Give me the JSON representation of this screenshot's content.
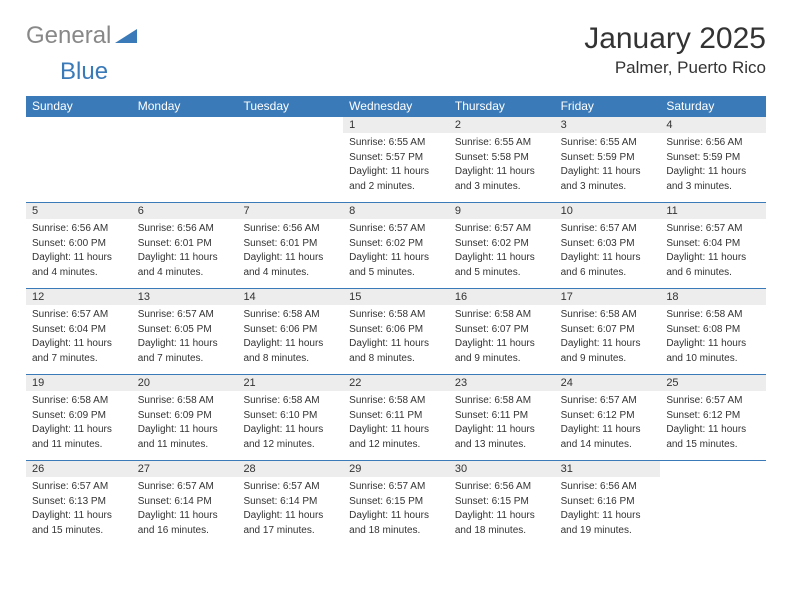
{
  "colors": {
    "header_bg": "#3a7ab8",
    "header_text": "#ffffff",
    "daynum_bg": "#ededed",
    "border": "#3a7ab8",
    "logo_gray": "#888888",
    "logo_blue": "#3a7ab8",
    "text": "#333333",
    "page_bg": "#ffffff"
  },
  "typography": {
    "title_fontsize": 30,
    "location_fontsize": 17,
    "dayheader_fontsize": 12,
    "daynum_fontsize": 11,
    "cell_fontsize": 10
  },
  "logo": {
    "text1": "General",
    "text2": "Blue"
  },
  "title": "January 2025",
  "location": "Palmer, Puerto Rico",
  "day_headers": [
    "Sunday",
    "Monday",
    "Tuesday",
    "Wednesday",
    "Thursday",
    "Friday",
    "Saturday"
  ],
  "weeks": [
    [
      {
        "blank": true
      },
      {
        "blank": true
      },
      {
        "blank": true
      },
      {
        "n": "1",
        "sunrise": "Sunrise: 6:55 AM",
        "sunset": "Sunset: 5:57 PM",
        "dl1": "Daylight: 11 hours",
        "dl2": "and 2 minutes."
      },
      {
        "n": "2",
        "sunrise": "Sunrise: 6:55 AM",
        "sunset": "Sunset: 5:58 PM",
        "dl1": "Daylight: 11 hours",
        "dl2": "and 3 minutes."
      },
      {
        "n": "3",
        "sunrise": "Sunrise: 6:55 AM",
        "sunset": "Sunset: 5:59 PM",
        "dl1": "Daylight: 11 hours",
        "dl2": "and 3 minutes."
      },
      {
        "n": "4",
        "sunrise": "Sunrise: 6:56 AM",
        "sunset": "Sunset: 5:59 PM",
        "dl1": "Daylight: 11 hours",
        "dl2": "and 3 minutes."
      }
    ],
    [
      {
        "n": "5",
        "sunrise": "Sunrise: 6:56 AM",
        "sunset": "Sunset: 6:00 PM",
        "dl1": "Daylight: 11 hours",
        "dl2": "and 4 minutes."
      },
      {
        "n": "6",
        "sunrise": "Sunrise: 6:56 AM",
        "sunset": "Sunset: 6:01 PM",
        "dl1": "Daylight: 11 hours",
        "dl2": "and 4 minutes."
      },
      {
        "n": "7",
        "sunrise": "Sunrise: 6:56 AM",
        "sunset": "Sunset: 6:01 PM",
        "dl1": "Daylight: 11 hours",
        "dl2": "and 4 minutes."
      },
      {
        "n": "8",
        "sunrise": "Sunrise: 6:57 AM",
        "sunset": "Sunset: 6:02 PM",
        "dl1": "Daylight: 11 hours",
        "dl2": "and 5 minutes."
      },
      {
        "n": "9",
        "sunrise": "Sunrise: 6:57 AM",
        "sunset": "Sunset: 6:02 PM",
        "dl1": "Daylight: 11 hours",
        "dl2": "and 5 minutes."
      },
      {
        "n": "10",
        "sunrise": "Sunrise: 6:57 AM",
        "sunset": "Sunset: 6:03 PM",
        "dl1": "Daylight: 11 hours",
        "dl2": "and 6 minutes."
      },
      {
        "n": "11",
        "sunrise": "Sunrise: 6:57 AM",
        "sunset": "Sunset: 6:04 PM",
        "dl1": "Daylight: 11 hours",
        "dl2": "and 6 minutes."
      }
    ],
    [
      {
        "n": "12",
        "sunrise": "Sunrise: 6:57 AM",
        "sunset": "Sunset: 6:04 PM",
        "dl1": "Daylight: 11 hours",
        "dl2": "and 7 minutes."
      },
      {
        "n": "13",
        "sunrise": "Sunrise: 6:57 AM",
        "sunset": "Sunset: 6:05 PM",
        "dl1": "Daylight: 11 hours",
        "dl2": "and 7 minutes."
      },
      {
        "n": "14",
        "sunrise": "Sunrise: 6:58 AM",
        "sunset": "Sunset: 6:06 PM",
        "dl1": "Daylight: 11 hours",
        "dl2": "and 8 minutes."
      },
      {
        "n": "15",
        "sunrise": "Sunrise: 6:58 AM",
        "sunset": "Sunset: 6:06 PM",
        "dl1": "Daylight: 11 hours",
        "dl2": "and 8 minutes."
      },
      {
        "n": "16",
        "sunrise": "Sunrise: 6:58 AM",
        "sunset": "Sunset: 6:07 PM",
        "dl1": "Daylight: 11 hours",
        "dl2": "and 9 minutes."
      },
      {
        "n": "17",
        "sunrise": "Sunrise: 6:58 AM",
        "sunset": "Sunset: 6:07 PM",
        "dl1": "Daylight: 11 hours",
        "dl2": "and 9 minutes."
      },
      {
        "n": "18",
        "sunrise": "Sunrise: 6:58 AM",
        "sunset": "Sunset: 6:08 PM",
        "dl1": "Daylight: 11 hours",
        "dl2": "and 10 minutes."
      }
    ],
    [
      {
        "n": "19",
        "sunrise": "Sunrise: 6:58 AM",
        "sunset": "Sunset: 6:09 PM",
        "dl1": "Daylight: 11 hours",
        "dl2": "and 11 minutes."
      },
      {
        "n": "20",
        "sunrise": "Sunrise: 6:58 AM",
        "sunset": "Sunset: 6:09 PM",
        "dl1": "Daylight: 11 hours",
        "dl2": "and 11 minutes."
      },
      {
        "n": "21",
        "sunrise": "Sunrise: 6:58 AM",
        "sunset": "Sunset: 6:10 PM",
        "dl1": "Daylight: 11 hours",
        "dl2": "and 12 minutes."
      },
      {
        "n": "22",
        "sunrise": "Sunrise: 6:58 AM",
        "sunset": "Sunset: 6:11 PM",
        "dl1": "Daylight: 11 hours",
        "dl2": "and 12 minutes."
      },
      {
        "n": "23",
        "sunrise": "Sunrise: 6:58 AM",
        "sunset": "Sunset: 6:11 PM",
        "dl1": "Daylight: 11 hours",
        "dl2": "and 13 minutes."
      },
      {
        "n": "24",
        "sunrise": "Sunrise: 6:57 AM",
        "sunset": "Sunset: 6:12 PM",
        "dl1": "Daylight: 11 hours",
        "dl2": "and 14 minutes."
      },
      {
        "n": "25",
        "sunrise": "Sunrise: 6:57 AM",
        "sunset": "Sunset: 6:12 PM",
        "dl1": "Daylight: 11 hours",
        "dl2": "and 15 minutes."
      }
    ],
    [
      {
        "n": "26",
        "sunrise": "Sunrise: 6:57 AM",
        "sunset": "Sunset: 6:13 PM",
        "dl1": "Daylight: 11 hours",
        "dl2": "and 15 minutes."
      },
      {
        "n": "27",
        "sunrise": "Sunrise: 6:57 AM",
        "sunset": "Sunset: 6:14 PM",
        "dl1": "Daylight: 11 hours",
        "dl2": "and 16 minutes."
      },
      {
        "n": "28",
        "sunrise": "Sunrise: 6:57 AM",
        "sunset": "Sunset: 6:14 PM",
        "dl1": "Daylight: 11 hours",
        "dl2": "and 17 minutes."
      },
      {
        "n": "29",
        "sunrise": "Sunrise: 6:57 AM",
        "sunset": "Sunset: 6:15 PM",
        "dl1": "Daylight: 11 hours",
        "dl2": "and 18 minutes."
      },
      {
        "n": "30",
        "sunrise": "Sunrise: 6:56 AM",
        "sunset": "Sunset: 6:15 PM",
        "dl1": "Daylight: 11 hours",
        "dl2": "and 18 minutes."
      },
      {
        "n": "31",
        "sunrise": "Sunrise: 6:56 AM",
        "sunset": "Sunset: 6:16 PM",
        "dl1": "Daylight: 11 hours",
        "dl2": "and 19 minutes."
      },
      {
        "blank": true
      }
    ]
  ]
}
